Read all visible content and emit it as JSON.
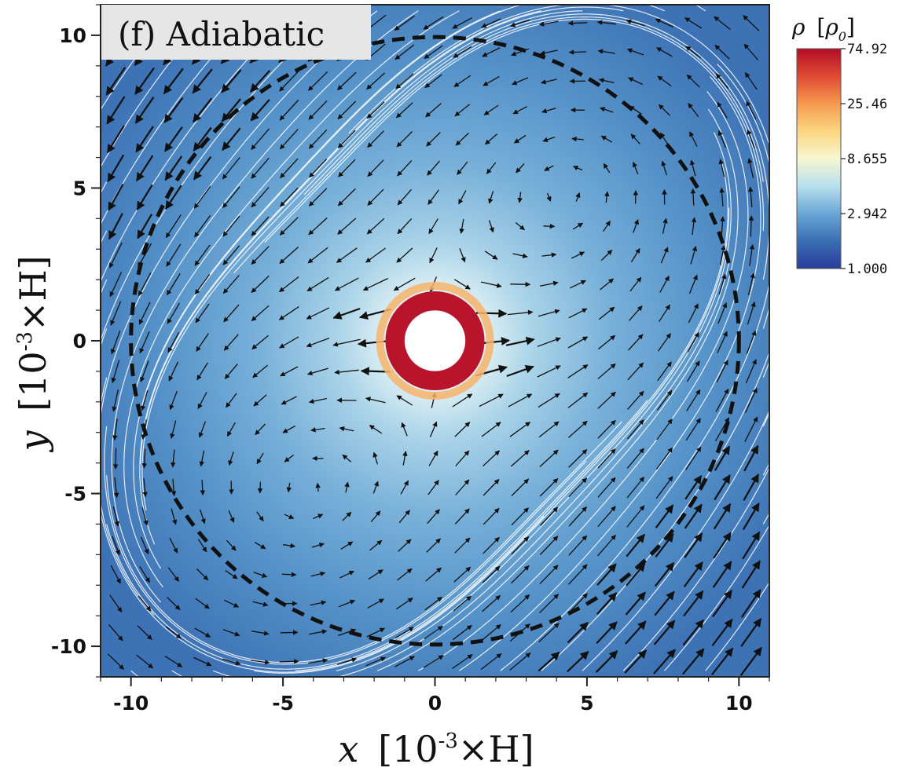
{
  "chart_data": {
    "type": "heatmap",
    "panel_label": "(f) Adiabatic",
    "xlabel": {
      "var": "x",
      "unit": "10",
      "exp": "-3",
      "suffix": "×H"
    },
    "ylabel": {
      "var": "y",
      "unit": "10",
      "exp": "-3",
      "suffix": "×H"
    },
    "xlim": [
      -11,
      11
    ],
    "ylim": [
      -11,
      11
    ],
    "xticks": [
      -10,
      -5,
      0,
      5,
      10
    ],
    "yticks": [
      -10,
      -5,
      0,
      5,
      10
    ],
    "xtick_labels": [
      "-10",
      "-5",
      "0",
      "5",
      "10"
    ],
    "ytick_labels": [
      "-10",
      "-5",
      "0",
      "5",
      "10"
    ],
    "colorbar": {
      "title": {
        "var": "ρ",
        "unit": "ρ",
        "sub": "0"
      },
      "scale": "log",
      "range": [
        1.0,
        74.92
      ],
      "ticks": [
        74.92,
        25.46,
        8.655,
        2.942,
        1.0
      ],
      "tick_labels": [
        "74.92",
        "25.46",
        "8.655",
        "2.942",
        "1.000"
      ],
      "colormap": [
        "#2b3c9c",
        "#3a6fb4",
        "#6aa7d6",
        "#b8e0ee",
        "#f7f6d0",
        "#fbd680",
        "#f59a4e",
        "#df4a33",
        "#b30d26"
      ]
    },
    "dashed_circle_radius": 10,
    "inner_hole_radius": 1,
    "density_peak_ring": [
      1.0,
      1.5
    ]
  }
}
